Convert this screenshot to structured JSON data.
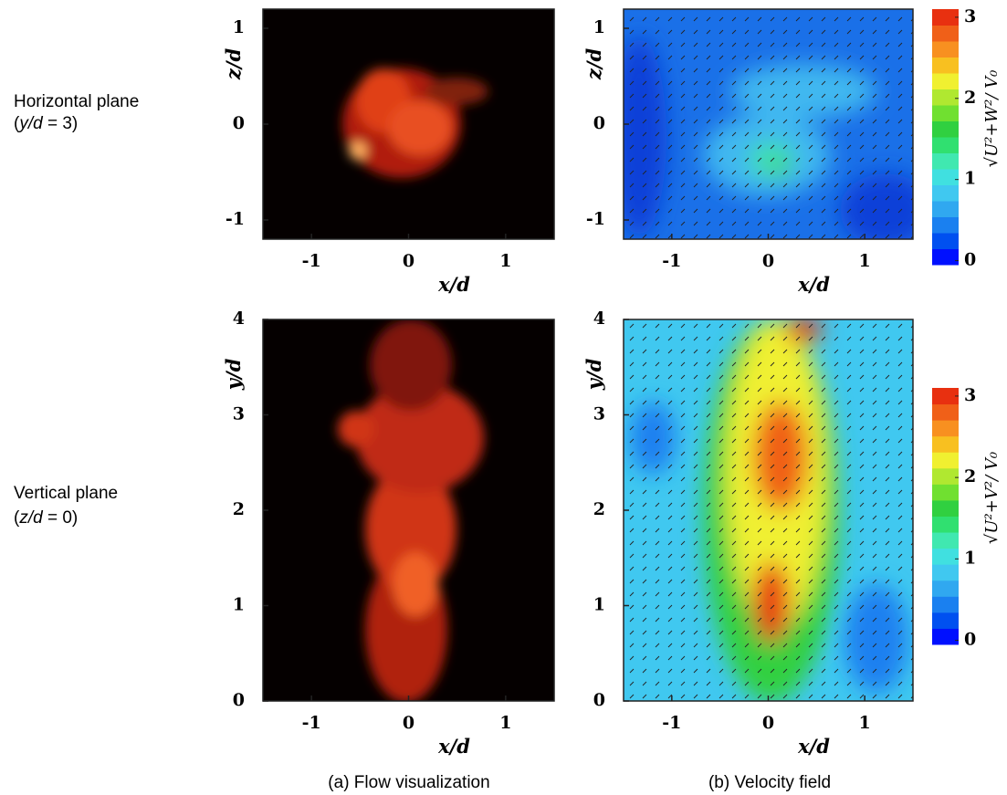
{
  "row_labels": [
    {
      "title": "Horizontal plane",
      "prefix": "(",
      "var": "y/d",
      "rest": " = 3)"
    },
    {
      "title": "Vertical  plane",
      "prefix": "(",
      "var": "z/d",
      "rest": " = 0)"
    }
  ],
  "panels": [
    {
      "xlabel": "x/d",
      "ylabel": "z/d",
      "xlim": [
        -1.5,
        1.5
      ],
      "ylim": [
        -1.2,
        1.2
      ],
      "xticks": [
        -1,
        0,
        1
      ],
      "yticks": [
        -1,
        0,
        1
      ]
    },
    {
      "xlabel": "x/d",
      "ylabel": "z/d",
      "xlim": [
        -1.5,
        1.5
      ],
      "ylim": [
        -1.2,
        1.2
      ],
      "xticks": [
        -1,
        0,
        1
      ],
      "yticks": [
        -1,
        0,
        1
      ]
    },
    {
      "xlabel": "x/d",
      "ylabel": "y/d",
      "xlim": [
        -1.5,
        1.5
      ],
      "ylim": [
        0,
        4
      ],
      "xticks": [
        -1,
        0,
        1
      ],
      "yticks": [
        0,
        1,
        2,
        3,
        4
      ]
    },
    {
      "xlabel": "x/d",
      "ylabel": "y/d",
      "xlim": [
        -1.5,
        1.5
      ],
      "ylim": [
        0,
        4
      ],
      "xticks": [
        -1,
        0,
        1
      ],
      "yticks": [
        0,
        1,
        2,
        3,
        4
      ]
    }
  ],
  "colorbars": [
    {
      "label": "√U²+W²/ V₀",
      "lim": [
        -0.05,
        3.1
      ],
      "ticks": [
        0,
        1,
        2,
        3
      ],
      "colors": [
        "#0010ff",
        "#0050f0",
        "#1a80f0",
        "#30a8f0",
        "#40c8f0",
        "#40e0e0",
        "#40e8b0",
        "#30e070",
        "#30d040",
        "#70e030",
        "#b0e830",
        "#f0f030",
        "#f8c020",
        "#f89020",
        "#f06018",
        "#e83010"
      ]
    },
    {
      "label": "√U²+V²/ V₀",
      "lim": [
        -0.05,
        3.1
      ],
      "ticks": [
        0,
        1,
        2,
        3
      ],
      "colors": [
        "#0010ff",
        "#0050f0",
        "#1a80f0",
        "#30a8f0",
        "#40c8f0",
        "#40e0e0",
        "#40e8b0",
        "#30e070",
        "#30d040",
        "#70e030",
        "#b0e830",
        "#f0f030",
        "#f8c020",
        "#f89020",
        "#f06018",
        "#e83010"
      ]
    }
  ],
  "captions": [
    "(a) Flow visualization",
    "(b) Velocity field"
  ]
}
